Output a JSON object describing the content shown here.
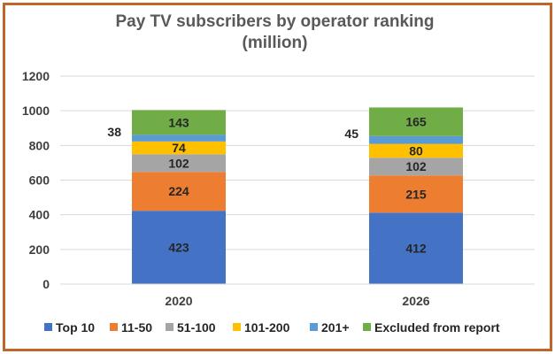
{
  "chart_data": {
    "type": "bar",
    "stacked": true,
    "title_line1": "Pay TV subscribers by operator ranking",
    "title_line2": "(million)",
    "categories": [
      "2020",
      "2026"
    ],
    "ylim": [
      0,
      1200
    ],
    "yticks": [
      0,
      200,
      400,
      600,
      800,
      1000,
      1200
    ],
    "grid": true,
    "legend_position": "bottom",
    "series": [
      {
        "name": "Top 10",
        "color": "#4472c4",
        "values": [
          423,
          412
        ]
      },
      {
        "name": "11-50",
        "color": "#ed7d31",
        "values": [
          224,
          215
        ]
      },
      {
        "name": "51-100",
        "color": "#a5a5a5",
        "values": [
          102,
          102
        ]
      },
      {
        "name": "101-200",
        "color": "#ffc000",
        "values": [
          74,
          80
        ]
      },
      {
        "name": "201+",
        "color": "#5b9bd5",
        "values": [
          38,
          45
        ]
      },
      {
        "name": "Excluded from report",
        "color": "#70ad47",
        "values": [
          143,
          165
        ]
      }
    ]
  }
}
